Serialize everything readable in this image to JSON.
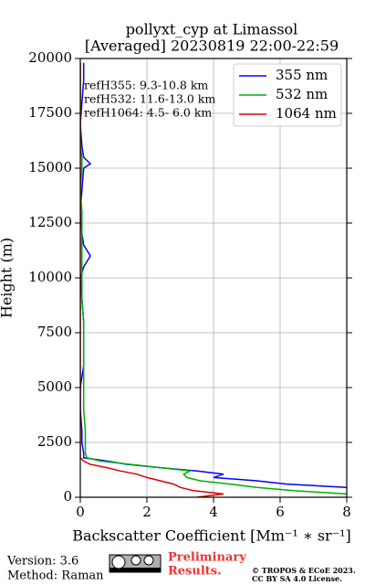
{
  "chart_data": {
    "type": "line",
    "title": [
      "pollyxt_cyp at Limassol",
      "[Averaged] 20230819 22:00-22:59"
    ],
    "xlabel": "Backscatter Coefficient [Mm⁻¹ ∗ sr⁻¹]",
    "ylabel": "Height (m)",
    "y": [
      0,
      150,
      300,
      450,
      600,
      750,
      900,
      1050,
      1200,
      1350,
      1500,
      1650,
      1800,
      2000,
      2500,
      3000,
      4000,
      5000,
      6000,
      7000,
      8000,
      9000,
      10000,
      10500,
      11000,
      11500,
      12000,
      13000,
      14000,
      15000,
      15200,
      15500,
      16000,
      17000,
      18000,
      19000,
      19800
    ],
    "series": [
      {
        "name": "355 nm",
        "color": "#0000ff",
        "values": [
          null,
          null,
          null,
          8.0,
          6.2,
          5.3,
          4.0,
          4.3,
          3.5,
          2.4,
          1.4,
          0.8,
          0.1,
          0.1,
          0.05,
          0.05,
          0.0,
          0.0,
          0.1,
          0.1,
          0.1,
          0.05,
          0.0,
          0.1,
          0.3,
          0.1,
          0.05,
          0.0,
          0.05,
          0.1,
          0.3,
          0.1,
          0.05,
          0.0,
          0.05,
          0.1,
          0.1
        ]
      },
      {
        "name": "532 nm",
        "color": "#00b000",
        "values": [
          null,
          8.0,
          6.4,
          5.3,
          4.5,
          3.6,
          3.2,
          3.1,
          3.3,
          2.4,
          1.5,
          0.6,
          0.2,
          0.15,
          0.15,
          0.15,
          0.1,
          0.1,
          0.1,
          0.1,
          0.1,
          0.05,
          0.05,
          0.05,
          0.05,
          0.05,
          0.05,
          0.05,
          0.0,
          0.05,
          0.05,
          0.05,
          0.0,
          0.0,
          0.0,
          0.0,
          0.0
        ]
      },
      {
        "name": "1064 nm",
        "color": "#e00000",
        "values": [
          3.5,
          4.3,
          3.4,
          3.0,
          2.8,
          2.4,
          2.0,
          1.7,
          1.2,
          0.8,
          0.3,
          0.1,
          0.0,
          0.0,
          0.0,
          0.0,
          0.0,
          0.0,
          0.0,
          0.0,
          0.0,
          0.0,
          0.0,
          0.0,
          0.0,
          0.0,
          0.0,
          0.0,
          0.0,
          0.0,
          0.0,
          0.0,
          0.0,
          0.0,
          0.0,
          0.0,
          0.0
        ]
      }
    ],
    "xlim": [
      0,
      8
    ],
    "xticks": [
      0,
      2,
      4,
      6,
      8
    ],
    "ylim": [
      0,
      20000
    ],
    "yticks": [
      0,
      2500,
      5000,
      7500,
      10000,
      12500,
      15000,
      17500,
      20000
    ],
    "grid": true,
    "legend": "upper right",
    "annotations": [
      "refH355:  9.3-10.8 km",
      "refH532: 11.6-13.0 km",
      "refH1064:  4.5- 6.0 km"
    ]
  },
  "footer": {
    "version": "Version: 3.6",
    "method": "Method: Raman",
    "preliminary": [
      "Preliminary",
      "Results."
    ],
    "copyright": [
      "© TROPOS & ECoE 2023.",
      "CC BY SA 4.0 License."
    ]
  }
}
